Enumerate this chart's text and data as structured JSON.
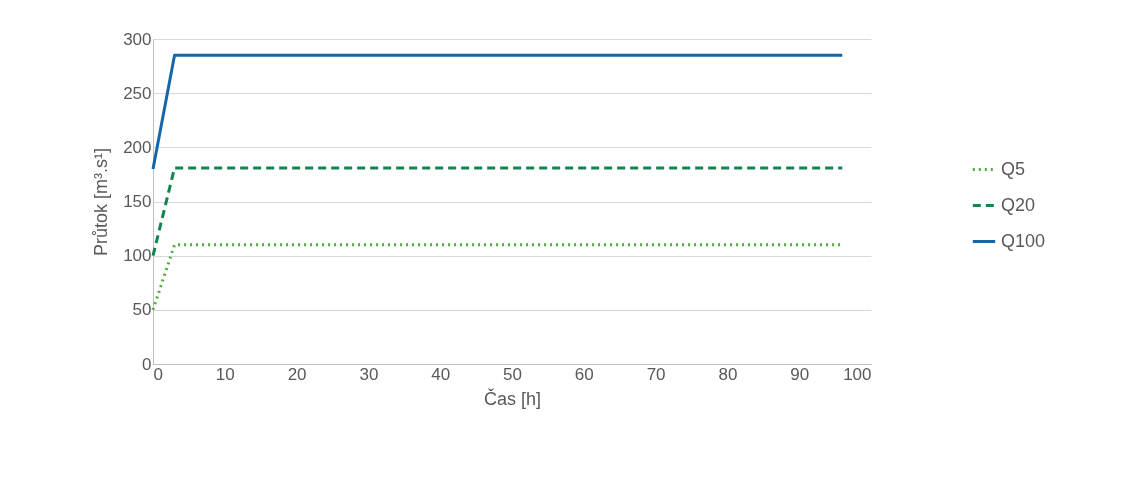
{
  "chart_data": {
    "type": "line",
    "xlabel": "Čas [h]",
    "ylabel": "Průtok [m³.s¹]",
    "xlim": [
      0,
      100
    ],
    "xticks": [
      0,
      10,
      20,
      30,
      40,
      50,
      60,
      70,
      80,
      90,
      100
    ],
    "ylim": [
      0,
      300
    ],
    "yticks": [
      0,
      50,
      100,
      150,
      200,
      250,
      300
    ],
    "grid": "y",
    "legend": "right",
    "series": [
      {
        "name": "Q5",
        "color": "#4eae3c",
        "line_style": "dotted",
        "x": [
          0,
          3,
          96
        ],
        "values": [
          50,
          110,
          110
        ]
      },
      {
        "name": "Q20",
        "color": "#13834f",
        "line_style": "dashed",
        "x": [
          0,
          3,
          96
        ],
        "values": [
          100,
          181,
          181
        ]
      },
      {
        "name": "Q100",
        "color": "#1566a8",
        "line_style": "solid",
        "x": [
          0,
          2,
          3,
          96
        ],
        "values": [
          180,
          250,
          285,
          285
        ]
      }
    ]
  }
}
